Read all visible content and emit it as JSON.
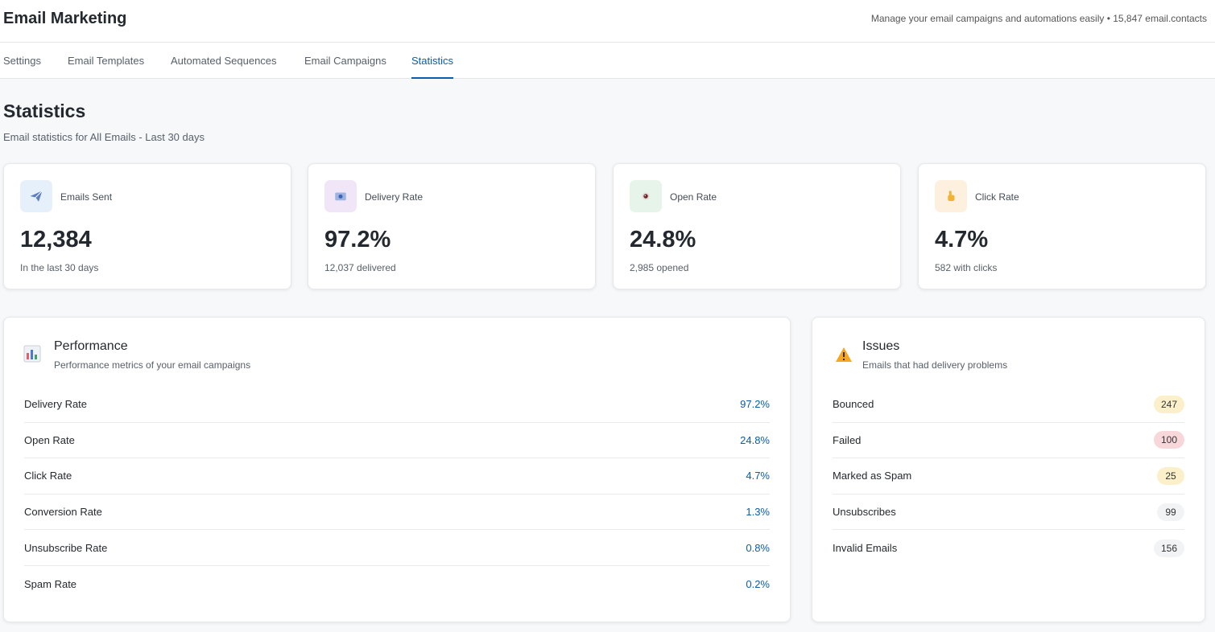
{
  "header": {
    "title": "Email Marketing",
    "meta": "Manage your email campaigns and automations easily • 15,847 email.contacts"
  },
  "tabs": [
    {
      "label": "Settings"
    },
    {
      "label": "Email Templates"
    },
    {
      "label": "Automated Sequences"
    },
    {
      "label": "Email Campaigns"
    },
    {
      "label": "Statistics"
    }
  ],
  "active_tab": "Statistics",
  "page": {
    "title": "Statistics",
    "subtitle": "Email statistics for All Emails - Last 30 days"
  },
  "stats": [
    {
      "icon": "paper-plane-icon",
      "label": "Emails Sent",
      "value": "12,384",
      "sub": "In the last 30 days",
      "icon_bg": "#e6f0fb"
    },
    {
      "icon": "envelope-icon",
      "label": "Delivery Rate",
      "value": "97.2%",
      "sub": "12,037 delivered",
      "icon_bg": "#f1e6f7"
    },
    {
      "icon": "eye-icon",
      "label": "Open Rate",
      "value": "24.8%",
      "sub": "2,985 opened",
      "icon_bg": "#e6f4ea"
    },
    {
      "icon": "pointer-hand-icon",
      "label": "Click Rate",
      "value": "4.7%",
      "sub": "582 with clicks",
      "icon_bg": "#fdf0df"
    }
  ],
  "performance": {
    "icon": "bar-chart-icon",
    "title": "Performance",
    "subtitle": "Performance metrics of your email campaigns",
    "rows": [
      {
        "label": "Delivery Rate",
        "value": "97.2%"
      },
      {
        "label": "Open Rate",
        "value": "24.8%"
      },
      {
        "label": "Click Rate",
        "value": "4.7%"
      },
      {
        "label": "Conversion Rate",
        "value": "1.3%"
      },
      {
        "label": "Unsubscribe Rate",
        "value": "0.8%"
      },
      {
        "label": "Spam Rate",
        "value": "0.2%"
      }
    ]
  },
  "issues": {
    "icon": "warning-icon",
    "title": "Issues",
    "subtitle": "Emails that had delivery problems",
    "rows": [
      {
        "label": "Bounced",
        "value": "247",
        "badge_color": "#fbf0c9"
      },
      {
        "label": "Failed",
        "value": "100",
        "badge_color": "#f8d7da"
      },
      {
        "label": "Marked as Spam",
        "value": "25",
        "badge_color": "#fbf0c9"
      },
      {
        "label": "Unsubscribes",
        "value": "99",
        "badge_color": "#f2f3f5"
      },
      {
        "label": "Invalid Emails",
        "value": "156",
        "badge_color": "#f2f3f5"
      }
    ]
  }
}
